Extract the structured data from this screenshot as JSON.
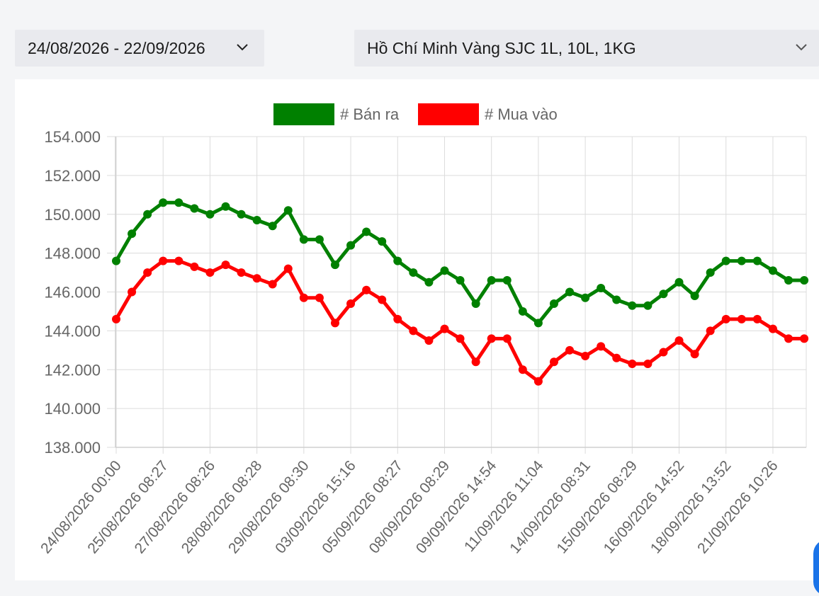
{
  "filters": {
    "date_range": "24/08/2026 - 22/09/2026",
    "location_product": "Hồ Chí Minh Vàng SJC 1L, 10L, 1KG",
    "date_range_icon": "chevron-down-icon",
    "location_icon": "chevron-down-icon"
  },
  "chart_data": {
    "type": "line",
    "legend_position": "top-center",
    "grid": true,
    "ylim": [
      138000,
      154000
    ],
    "y_ticks": [
      "138.000",
      "140.000",
      "142.000",
      "144.000",
      "146.000",
      "148.000",
      "150.000",
      "152.000",
      "154.000"
    ],
    "x_tick_labels": [
      "24/08/2026 00:00",
      "25/08/2026 08:27",
      "27/08/2026 08:26",
      "28/08/2026 08:28",
      "29/08/2026 08:30",
      "03/09/2026 15:16",
      "05/09/2026 08:27",
      "08/09/2026 08:29",
      "09/09/2026 14:54",
      "11/09/2026 11:04",
      "14/09/2026 08:31",
      "15/09/2026 08:29",
      "16/09/2026 14:52",
      "18/09/2026 13:52",
      "21/09/2026 10:26"
    ],
    "tick_every": 3,
    "series": [
      {
        "name": "# Bán ra",
        "color": "#008000",
        "values": [
          147600,
          149000,
          150000,
          150600,
          150600,
          150300,
          150000,
          150400,
          150000,
          149700,
          149400,
          150200,
          148700,
          148700,
          147400,
          148400,
          149100,
          148600,
          147600,
          147000,
          146500,
          147100,
          146600,
          145400,
          146600,
          146600,
          145000,
          144400,
          145400,
          146000,
          145700,
          146200,
          145600,
          145300,
          145300,
          145900,
          146500,
          145800,
          147000,
          147600,
          147600,
          147600,
          147100,
          146600,
          146600
        ]
      },
      {
        "name": "# Mua vào",
        "color": "#ff0000",
        "values": [
          144600,
          146000,
          147000,
          147600,
          147600,
          147300,
          147000,
          147400,
          147000,
          146700,
          146400,
          147200,
          145700,
          145700,
          144400,
          145400,
          146100,
          145600,
          144600,
          144000,
          143500,
          144100,
          143600,
          142400,
          143600,
          143600,
          142000,
          141400,
          142400,
          143000,
          142700,
          143200,
          142600,
          142300,
          142300,
          142900,
          143500,
          142800,
          144000,
          144600,
          144600,
          144600,
          144100,
          143600,
          143600
        ]
      }
    ]
  }
}
